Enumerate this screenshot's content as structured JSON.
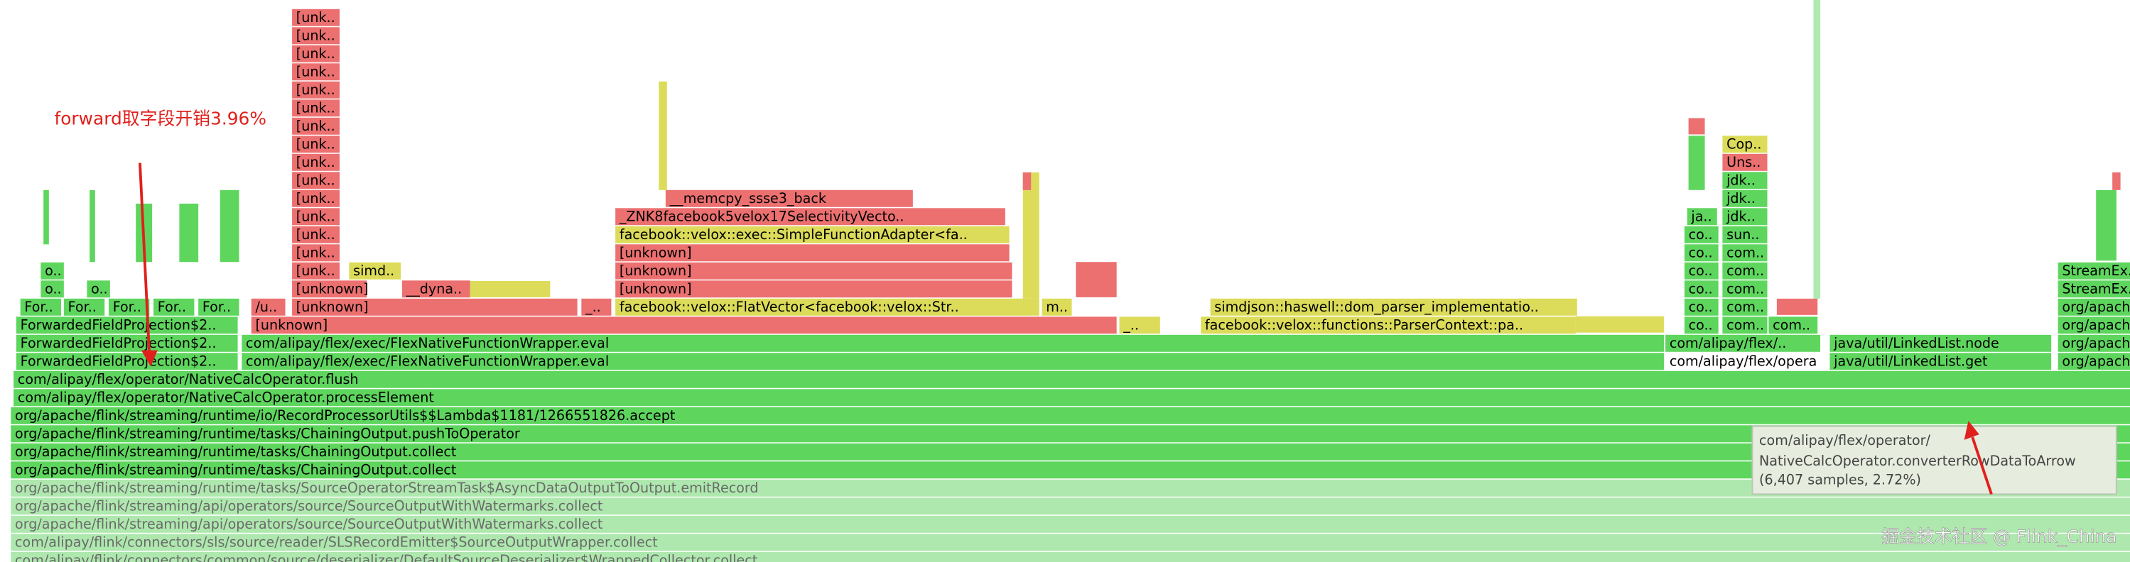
{
  "annotation": "forward取字段开销3.96%",
  "frames": [
    "ForwardedFieldProjection$2..",
    "[unknown]",
    "_..",
    "facebook::velox::functions::ParserContext::pa..",
    "co..",
    "com..",
    "com..",
    "org/apache..",
    "For..",
    "For..",
    "For..",
    "For..",
    "For..",
    "/u..",
    "[unknown]",
    "_..",
    "facebook::velox::FlatVector<facebook::velox::Str..",
    "m..",
    "simdjson::haswell::dom_parser_implementatio..",
    "co..",
    "com..",
    "org/apache..",
    "o..",
    "o..",
    "[unknown]",
    "__dyna..",
    "[unknown]",
    "co..",
    "com..",
    "StreamEx..",
    "o..",
    "[unk..",
    "simd..",
    "[unknown]",
    "co..",
    "com..",
    "StreamEx..",
    "[unknown]",
    "co..",
    "com..",
    "facebook::velox::exec::SimpleFunctionAdapter<fa..",
    "co..",
    "sun..",
    "_ZNK8facebook5velox17SelectivityVecto..",
    "ja..",
    "jdk..",
    "__memcpy_ssse3_back",
    "jdk..",
    "jdk..",
    "Uns..",
    "Cop..",
    "[unk..",
    "[unk..",
    "[unk..",
    "[unk..",
    "[unk..",
    "[unk..",
    "[unk..",
    "[unk..",
    "[unk..",
    "[unk..",
    "[unk..",
    "[unk..",
    "[unk..",
    "[unk..",
    "ForwardedFieldProjection$2..",
    "com/alipay/flex/exec/FlexNativeFunctionWrapper.eval",
    "com/alipay/flex/..",
    "java/util/LinkedList.node",
    "org/apache..",
    "ForwardedFieldProjection$2..",
    "com/alipay/flex/exec/FlexNativeFunctionWrapper.eval",
    "com/alipay/flex/opera",
    "java/util/LinkedList.get",
    "org/apache..",
    "com/alipay/flex/operator/NativeCalcOperator.flush",
    "com/alipay/flex/operator/NativeCalcOperator.processElement",
    "org/apache/flink/streaming/runtime/io/RecordProcessorUtils$$Lambda$1181/1266551826.accept",
    "org/apache/flink/streaming/runtime/tasks/ChainingOutput.pushToOperator",
    "org/apache/flink/streaming/runtime/tasks/ChainingOutput.collect",
    "org/apache/flink/streaming/runtime/tasks/ChainingOutput.collect",
    "org/apache/flink/streaming/runtime/tasks/SourceOperatorStreamTask$AsyncDataOutputToOutput.emitRecord",
    "org/apache/flink/streaming/api/operators/source/SourceOutputWithWatermarks.collect",
    "org/apache/flink/streaming/api/operators/source/SourceOutputWithWatermarks.collect",
    "com/alipay/flink/connectors/sls/source/reader/SLSRecordEmitter$SourceOutputWrapper.collect",
    "com/alipay/flink/connectors/common/source/deserializer/DefaultSourceDeserializer$WrappedCollector.collect"
  ],
  "tooltip": {
    "lines": [
      "com/alipay/flex/operator/",
      "NativeCalcOperator.converterRowDataToArrow",
      "(6,407 samples, 2.72%)"
    ]
  },
  "watermark": "掘金技术社区 @ Flink_China"
}
